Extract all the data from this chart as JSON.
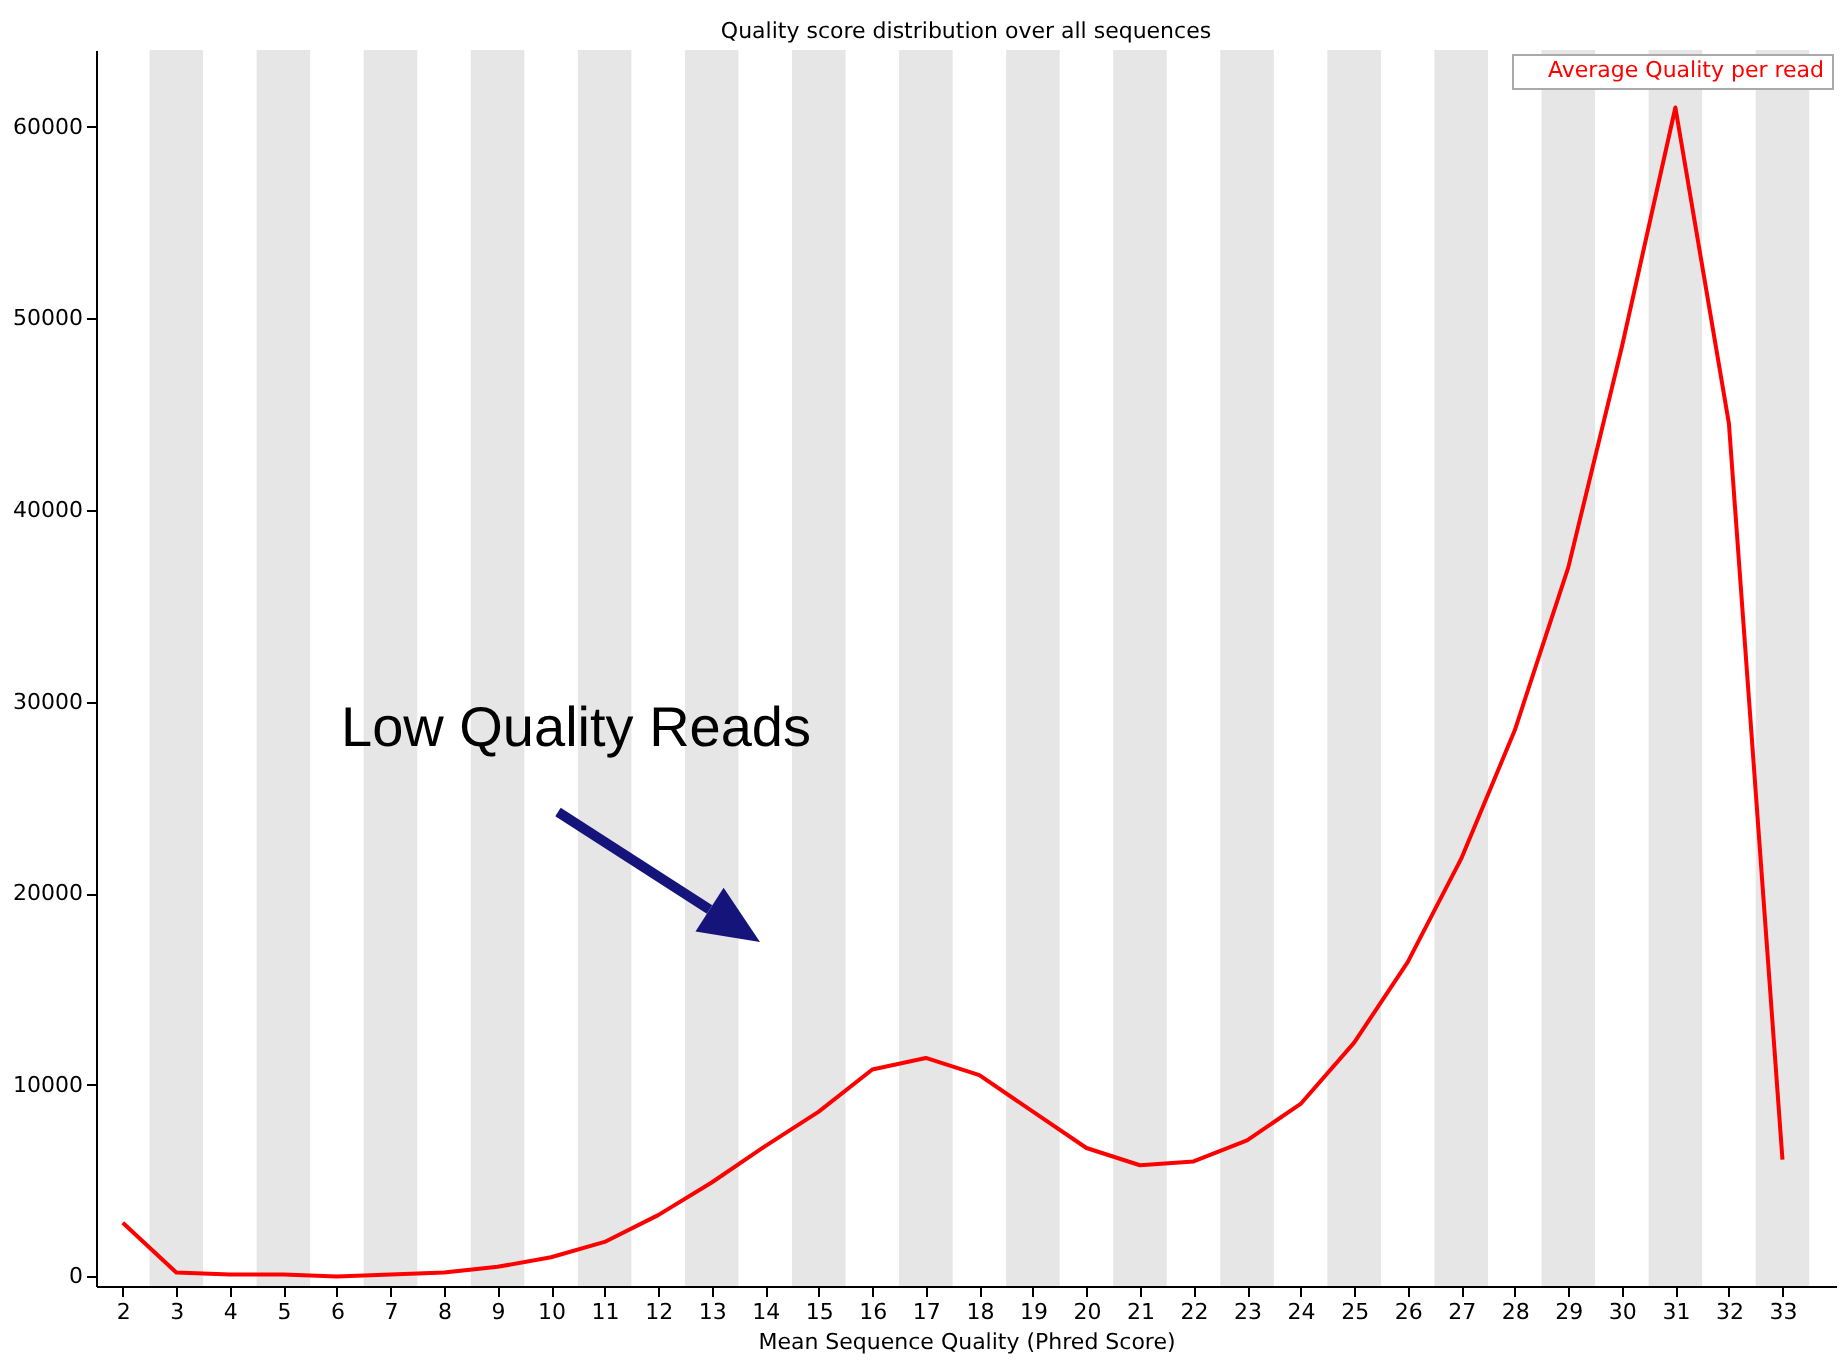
{
  "chart_data": {
    "type": "line",
    "title": "Quality score distribution over all sequences",
    "xlabel": "Mean Sequence Quality (Phred Score)",
    "x": [
      2,
      3,
      4,
      5,
      6,
      7,
      8,
      9,
      10,
      11,
      12,
      13,
      14,
      15,
      16,
      17,
      18,
      19,
      20,
      21,
      22,
      23,
      24,
      25,
      26,
      27,
      28,
      29,
      30,
      31,
      32,
      33
    ],
    "series": [
      {
        "name": "Average Quality per read",
        "color": "#ff0000",
        "values": [
          2800,
          200,
          100,
          100,
          0,
          100,
          200,
          500,
          1000,
          1800,
          3200,
          4900,
          6800,
          8600,
          10800,
          11400,
          10500,
          8600,
          6700,
          5800,
          6000,
          7100,
          9000,
          12200,
          16400,
          21800,
          28500,
          37000,
          48500,
          61000,
          44500,
          6100
        ]
      }
    ],
    "xlim": [
      1.5,
      34
    ],
    "ylim": [
      -500,
      64000
    ],
    "xticks": [
      2,
      3,
      4,
      5,
      6,
      7,
      8,
      9,
      10,
      11,
      12,
      13,
      14,
      15,
      16,
      17,
      18,
      19,
      20,
      21,
      22,
      23,
      24,
      25,
      26,
      27,
      28,
      29,
      30,
      31,
      32,
      33
    ],
    "yticks": [
      0,
      10000,
      20000,
      30000,
      40000,
      50000,
      60000
    ],
    "bands": [
      {
        "axis": "x",
        "from": 2.5,
        "to": 3.5,
        "color": "#e6e6e6"
      },
      {
        "axis": "x",
        "from": 4.5,
        "to": 5.5,
        "color": "#e6e6e6"
      },
      {
        "axis": "x",
        "from": 6.5,
        "to": 7.5,
        "color": "#e6e6e6"
      },
      {
        "axis": "x",
        "from": 8.5,
        "to": 9.5,
        "color": "#e6e6e6"
      },
      {
        "axis": "x",
        "from": 10.5,
        "to": 11.5,
        "color": "#e6e6e6"
      },
      {
        "axis": "x",
        "from": 12.5,
        "to": 13.5,
        "color": "#e6e6e6"
      },
      {
        "axis": "x",
        "from": 14.5,
        "to": 15.5,
        "color": "#e6e6e6"
      },
      {
        "axis": "x",
        "from": 16.5,
        "to": 17.5,
        "color": "#e6e6e6"
      },
      {
        "axis": "x",
        "from": 18.5,
        "to": 19.5,
        "color": "#e6e6e6"
      },
      {
        "axis": "x",
        "from": 20.5,
        "to": 21.5,
        "color": "#e6e6e6"
      },
      {
        "axis": "x",
        "from": 22.5,
        "to": 23.5,
        "color": "#e6e6e6"
      },
      {
        "axis": "x",
        "from": 24.5,
        "to": 25.5,
        "color": "#e6e6e6"
      },
      {
        "axis": "x",
        "from": 26.5,
        "to": 27.5,
        "color": "#e6e6e6"
      },
      {
        "axis": "x",
        "from": 28.5,
        "to": 29.5,
        "color": "#e6e6e6"
      },
      {
        "axis": "x",
        "from": 30.5,
        "to": 31.5,
        "color": "#e6e6e6"
      },
      {
        "axis": "x",
        "from": 32.5,
        "to": 33.5,
        "color": "#e6e6e6"
      }
    ],
    "annotations": [
      "Low Quality Reads"
    ],
    "legend": "top right"
  }
}
